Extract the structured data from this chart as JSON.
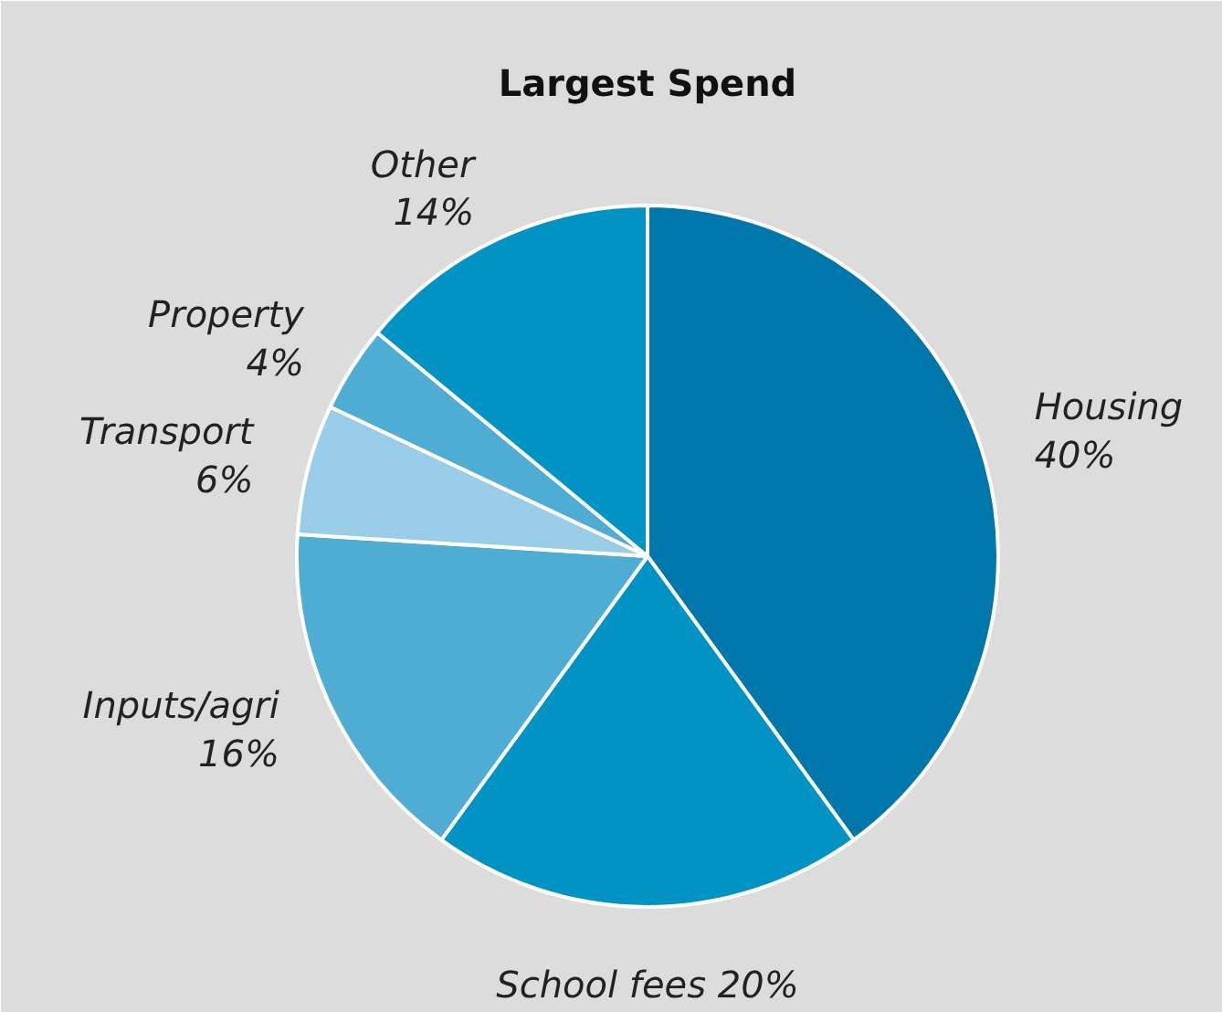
{
  "chart_data": {
    "type": "pie",
    "title": "Largest Spend",
    "categories": [
      "Housing",
      "School fees",
      "Inputs/agri",
      "Transport",
      "Property",
      "Other"
    ],
    "values": [
      40,
      20,
      16,
      6,
      4,
      14
    ],
    "value_labels": [
      "40%",
      "20%",
      "16%",
      "6%",
      "4%",
      "14%"
    ],
    "colors": [
      "#0077aa",
      "#0093c4",
      "#4fadd4",
      "#99cce6",
      "#4fadd4",
      "#0093c4"
    ]
  }
}
